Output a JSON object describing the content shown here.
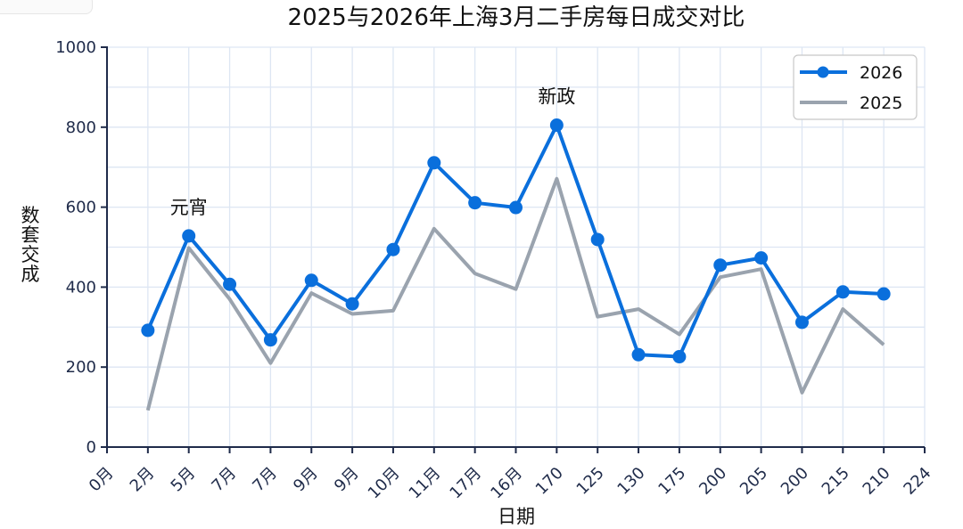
{
  "chart_data": {
    "type": "line",
    "title": "2025与2026年上海3月二手房每日成交对比",
    "xlabel": "日期",
    "ylabel": "数套交成",
    "ylim": [
      0,
      1000
    ],
    "yticks": [
      "0",
      "200",
      "400",
      "600",
      "800",
      "1000"
    ],
    "categories": [
      "0月",
      "2月",
      "5月",
      "7月",
      "7月",
      "9月",
      "9月",
      "10月",
      "11月",
      "17月",
      "16月",
      "170",
      "125",
      "130",
      "175",
      "200",
      "205",
      "200",
      "215",
      "210",
      "224"
    ],
    "series": [
      {
        "name": "2026",
        "color": "#0a6fdc",
        "marker": "circle",
        "values": [
          null,
          292,
          528,
          407,
          268,
          417,
          358,
          494,
          711,
          611,
          599,
          805,
          519,
          231,
          226,
          455,
          473,
          312,
          388,
          383,
          null
        ]
      },
      {
        "name": "2025",
        "color": "#9aa3ae",
        "marker": "none",
        "values": [
          null,
          92,
          498,
          370,
          210,
          385,
          333,
          341,
          546,
          434,
          395,
          671,
          326,
          345,
          282,
          425,
          445,
          136,
          345,
          256,
          null
        ]
      }
    ],
    "annotations": [
      {
        "text": "元宵",
        "category_index": 2,
        "y": 528
      },
      {
        "text": "新政",
        "category_index": 11,
        "y": 805
      }
    ],
    "grid": true,
    "legend_position": "top-right",
    "colors": {
      "axis": "#1f2b4a",
      "grid": "#dde6f3"
    }
  }
}
